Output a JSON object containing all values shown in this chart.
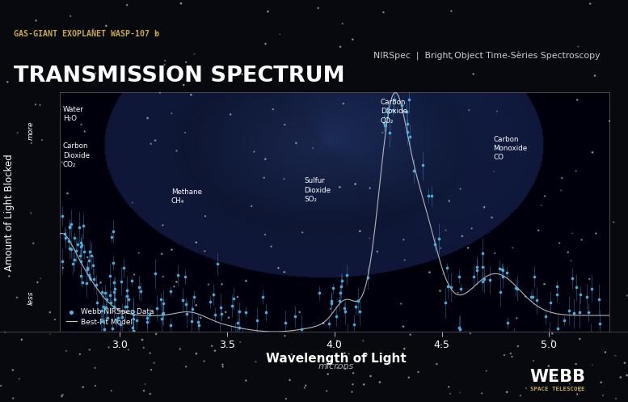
{
  "title_main": "TRANSMISSION SPECTRUM",
  "title_sub": "GAS-GIANT EXOPLANET WASP-107 b",
  "subtitle_right": "NIRSpec  |  Bright Object Time-Series Spectroscopy",
  "xlabel": "Wavelength of Light",
  "xlabel_sub": "microns",
  "ylabel": "Amount of Light Blocked",
  "ylabel_more": "more",
  "ylabel_less": "less",
  "xlim": [
    2.72,
    5.28
  ],
  "ylim": [
    0.0,
    1.0
  ],
  "xticks": [
    3.0,
    3.5,
    4.0,
    4.5,
    5.0
  ],
  "bg_color": "#07090f",
  "dot_color": "#4db8e8",
  "model_color": "#c8c8c8",
  "legend_dot": "Webb NIRSpec Data",
  "legend_line": "Best-Fit Model",
  "subtitle_color": "#c8a84b",
  "header_sep": 0.175
}
